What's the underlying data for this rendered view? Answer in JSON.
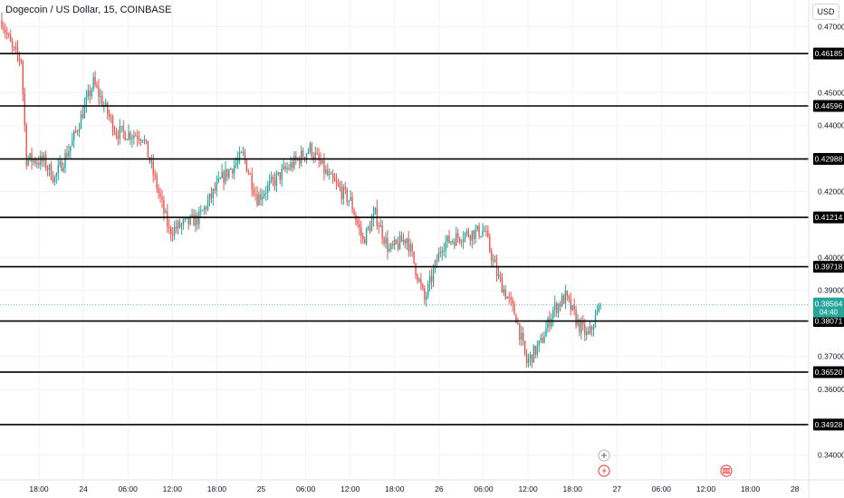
{
  "header": {
    "title": "Dogecoin / US Dollar, 15, COINBASE",
    "currency": "USD"
  },
  "colors": {
    "up": "#26a69a",
    "down": "#ef5350",
    "level_line": "#000000",
    "current_price_badge": "#26a69a",
    "axis_text": "#131722",
    "grid": "#f0f3fa"
  },
  "chart_data": {
    "type": "candlestick",
    "interval": "15",
    "x_tick_labels": [
      "18:00",
      "24",
      "06:00",
      "12:00",
      "18:00",
      "25",
      "06:00",
      "12:00",
      "18:00",
      "26",
      "06:00",
      "12:00",
      "18:00",
      "27",
      "06:00",
      "12:00",
      "18:00",
      "28"
    ],
    "y_tick_labels": [
      "0.47000",
      "0.45000",
      "0.44000",
      "0.42000",
      "0.40000",
      "0.39000",
      "0.37000",
      "0.36000",
      "0.34000"
    ],
    "ylim": [
      0.332,
      0.476
    ],
    "horizontal_levels": [
      0.46185,
      0.44596,
      0.42988,
      0.41214,
      0.39718,
      0.38071,
      0.3652,
      0.34928
    ],
    "current_price": {
      "value": 0.38564,
      "label": "0.38564",
      "countdown": "04:40"
    },
    "price_path_keypoints": [
      {
        "t": 0,
        "p": 0.472
      },
      {
        "t": 6,
        "p": 0.463
      },
      {
        "t": 11,
        "p": 0.46
      },
      {
        "t": 14,
        "p": 0.43
      },
      {
        "t": 24,
        "p": 0.429
      },
      {
        "t": 30,
        "p": 0.424
      },
      {
        "t": 40,
        "p": 0.435
      },
      {
        "t": 52,
        "p": 0.453
      },
      {
        "t": 65,
        "p": 0.438
      },
      {
        "t": 80,
        "p": 0.437
      },
      {
        "t": 95,
        "p": 0.408
      },
      {
        "t": 112,
        "p": 0.412
      },
      {
        "t": 125,
        "p": 0.424
      },
      {
        "t": 137,
        "p": 0.431
      },
      {
        "t": 145,
        "p": 0.418
      },
      {
        "t": 160,
        "p": 0.426
      },
      {
        "t": 175,
        "p": 0.433
      },
      {
        "t": 186,
        "p": 0.424
      },
      {
        "t": 198,
        "p": 0.417
      },
      {
        "t": 205,
        "p": 0.405
      },
      {
        "t": 212,
        "p": 0.413
      },
      {
        "t": 220,
        "p": 0.402
      },
      {
        "t": 230,
        "p": 0.406
      },
      {
        "t": 240,
        "p": 0.387
      },
      {
        "t": 250,
        "p": 0.404
      },
      {
        "t": 262,
        "p": 0.407
      },
      {
        "t": 274,
        "p": 0.408
      },
      {
        "t": 281,
        "p": 0.395
      },
      {
        "t": 292,
        "p": 0.382
      },
      {
        "t": 298,
        "p": 0.368
      },
      {
        "t": 306,
        "p": 0.374
      },
      {
        "t": 313,
        "p": 0.384
      },
      {
        "t": 320,
        "p": 0.388
      },
      {
        "t": 328,
        "p": 0.379
      },
      {
        "t": 333,
        "p": 0.376
      },
      {
        "t": 340,
        "p": 0.3856
      }
    ]
  }
}
